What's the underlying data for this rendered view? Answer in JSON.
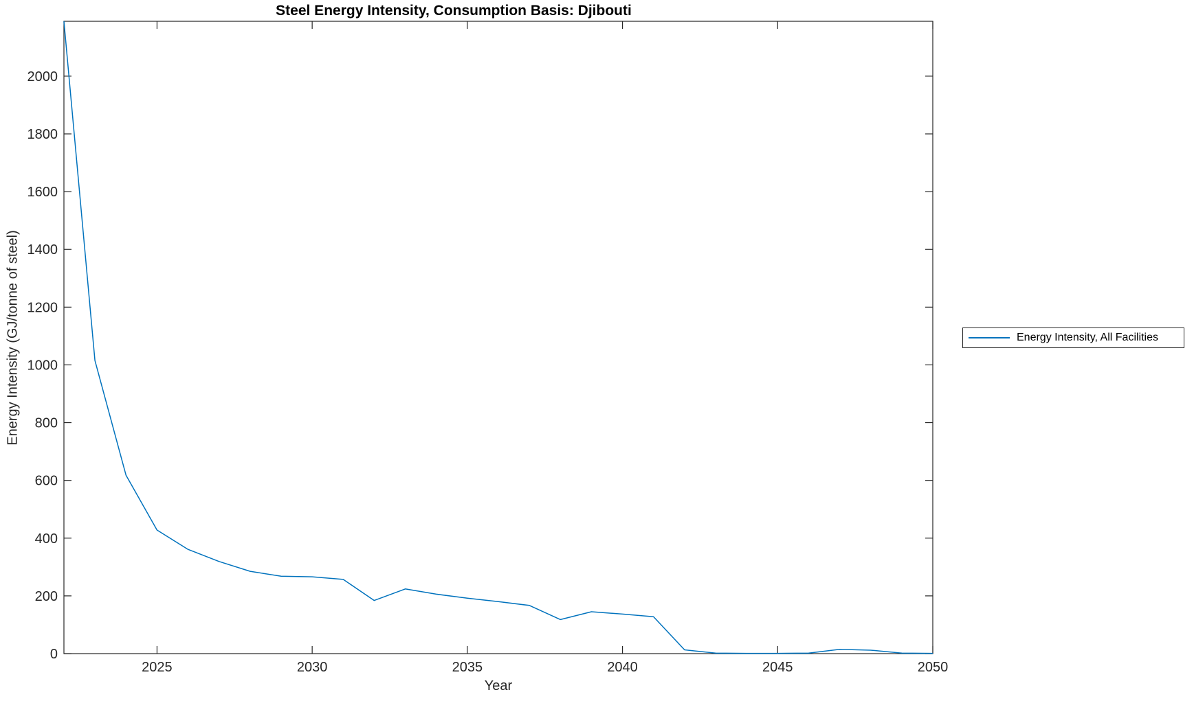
{
  "chart_data": {
    "type": "line",
    "title": "Steel Energy Intensity, Consumption Basis: Djibouti",
    "xlabel": "Year",
    "ylabel": "Energy Intensity (GJ/tonne of steel)",
    "legend": [
      "Energy Intensity, All Facilities"
    ],
    "legend_position": "outside-right",
    "grid": false,
    "x": [
      2022,
      2023,
      2024,
      2025,
      2026,
      2027,
      2028,
      2029,
      2030,
      2031,
      2032,
      2033,
      2034,
      2035,
      2036,
      2037,
      2038,
      2039,
      2040,
      2041,
      2042,
      2043,
      2044,
      2045,
      2046,
      2047,
      2048,
      2049,
      2050
    ],
    "values": [
      2190,
      1015,
      618,
      428,
      361,
      319,
      285,
      268,
      266,
      257,
      184,
      224,
      206,
      192,
      180,
      167,
      118,
      145,
      137,
      128,
      13,
      2,
      1,
      1,
      2,
      15,
      12,
      2,
      1
    ],
    "xlim": [
      2022,
      2050
    ],
    "ylim": [
      0,
      2190
    ],
    "x_ticks": [
      2025,
      2030,
      2035,
      2040,
      2045,
      2050
    ],
    "y_ticks": [
      0,
      200,
      400,
      600,
      800,
      1000,
      1200,
      1400,
      1600,
      1800,
      2000
    ],
    "line_color": "#0072BD",
    "axis_color": "#262626"
  }
}
